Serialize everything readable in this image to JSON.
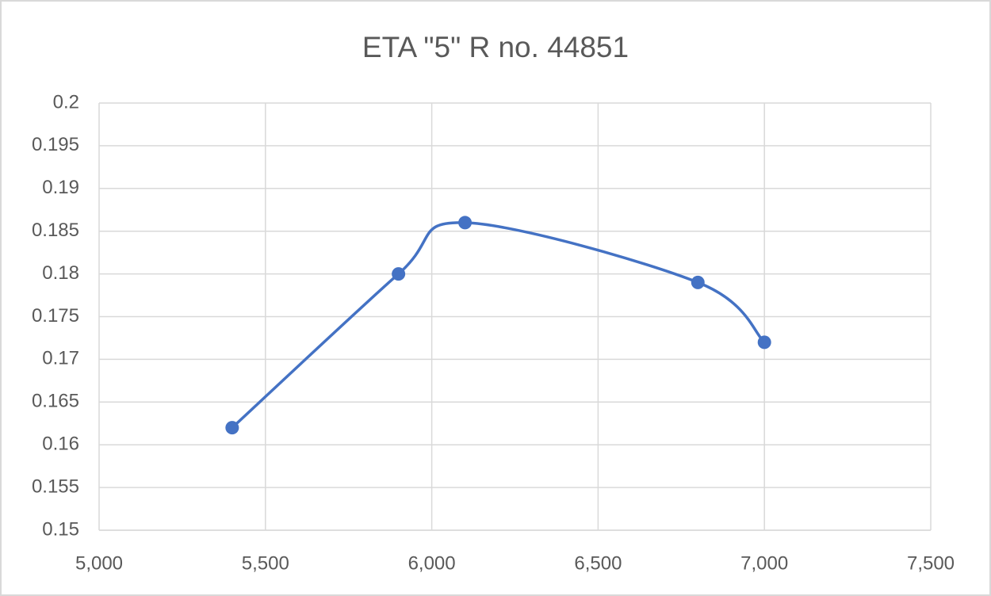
{
  "chart_data": {
    "type": "scatter",
    "title": "ETA \"5\" R no. 44851",
    "x": [
      5400,
      5900,
      6100,
      6800,
      7000
    ],
    "values": [
      0.162,
      0.18,
      0.186,
      0.179,
      0.172
    ],
    "color": "#4472c4",
    "smooth": true,
    "grid": true,
    "xlim": [
      5000,
      7500
    ],
    "xticks": [
      {
        "value": 5000,
        "label": "5,000"
      },
      {
        "value": 5500,
        "label": "5,500"
      },
      {
        "value": 6000,
        "label": "6,000"
      },
      {
        "value": 6500,
        "label": "6,500"
      },
      {
        "value": 7000,
        "label": "7,000"
      },
      {
        "value": 7500,
        "label": "7,500"
      }
    ],
    "ylim": [
      0.15,
      0.2
    ],
    "yticks": [
      0.15,
      0.155,
      0.16,
      0.165,
      0.17,
      0.175,
      0.18,
      0.185,
      0.19,
      0.195,
      0.2
    ]
  }
}
